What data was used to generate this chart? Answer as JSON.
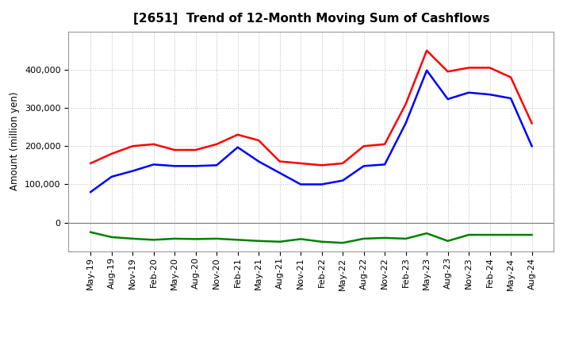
{
  "title": "[2651]  Trend of 12-Month Moving Sum of Cashflows",
  "ylabel": "Amount (million yen)",
  "x_labels": [
    "May-19",
    "Aug-19",
    "Nov-19",
    "Feb-20",
    "May-20",
    "Aug-20",
    "Nov-20",
    "Feb-21",
    "May-21",
    "Aug-21",
    "Nov-21",
    "Feb-22",
    "May-22",
    "Aug-22",
    "Nov-22",
    "Feb-23",
    "May-23",
    "Aug-23",
    "Nov-23",
    "Feb-24",
    "May-24",
    "Aug-24"
  ],
  "operating": [
    155000,
    180000,
    200000,
    205000,
    190000,
    190000,
    205000,
    230000,
    215000,
    160000,
    155000,
    150000,
    155000,
    200000,
    205000,
    310000,
    450000,
    395000,
    405000,
    405000,
    380000,
    260000
  ],
  "investing": [
    -25000,
    -38000,
    -42000,
    -45000,
    -42000,
    -43000,
    -42000,
    -45000,
    -48000,
    -50000,
    -43000,
    -50000,
    -53000,
    -42000,
    -40000,
    -42000,
    -28000,
    -48000,
    -32000,
    -32000,
    -32000,
    -32000
  ],
  "free": [
    80000,
    120000,
    135000,
    152000,
    148000,
    148000,
    150000,
    197000,
    160000,
    130000,
    100000,
    100000,
    110000,
    148000,
    152000,
    260000,
    398000,
    323000,
    340000,
    335000,
    325000,
    200000
  ],
  "op_color": "#ff0000",
  "inv_color": "#008000",
  "free_color": "#0000ff",
  "ylim_min": -75000,
  "ylim_max": 500000,
  "yticks": [
    0,
    100000,
    200000,
    300000,
    400000
  ],
  "background_color": "#ffffff",
  "grid_color": "#bbbbbb",
  "line_width": 1.8,
  "title_fontsize": 11,
  "ylabel_fontsize": 8.5,
  "tick_fontsize": 8,
  "legend_fontsize": 9
}
